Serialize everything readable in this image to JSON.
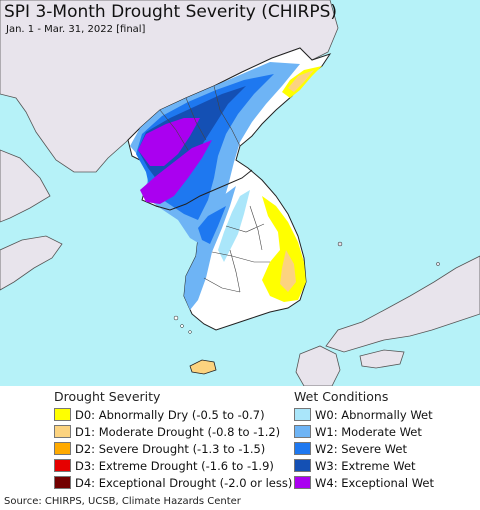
{
  "header": {
    "title": "SPI 3-Month Drought Severity (CHIRPS)",
    "subtitle": "Jan. 1 - Mar. 31, 2022 [final]"
  },
  "colors": {
    "ocean": "#b6f2f8",
    "land": "#e8e4ec",
    "normal": "#ffffff",
    "border": "#222222"
  },
  "legend": {
    "drought": {
      "title": "Drought Severity",
      "items": [
        {
          "label": "D0: Abnormally Dry (-0.5 to -0.7)",
          "color": "#ffff00"
        },
        {
          "label": "D1: Moderate Drought (-0.8 to -1.2)",
          "color": "#fcd37f"
        },
        {
          "label": "D2: Severe Drought (-1.3 to -1.5)",
          "color": "#ffaa00"
        },
        {
          "label": "D3: Extreme Drought (-1.6 to -1.9)",
          "color": "#e60000"
        },
        {
          "label": "D4: Exceptional Drought (-2.0 or less)",
          "color": "#730000"
        }
      ]
    },
    "wet": {
      "title": "Wet Conditions",
      "items": [
        {
          "label": "W0: Abnormally Wet",
          "color": "#aae6fa"
        },
        {
          "label": "W1: Moderate Wet",
          "color": "#6eb4f5"
        },
        {
          "label": "W2: Severe Wet",
          "color": "#1e78f0"
        },
        {
          "label": "W3: Extreme Wet",
          "color": "#1450b4"
        },
        {
          "label": "W4: Exceptional Wet",
          "color": "#aa00f0"
        }
      ]
    }
  },
  "footer": {
    "source": "Source: CHIRPS, UCSB, Climate Hazards Center"
  }
}
